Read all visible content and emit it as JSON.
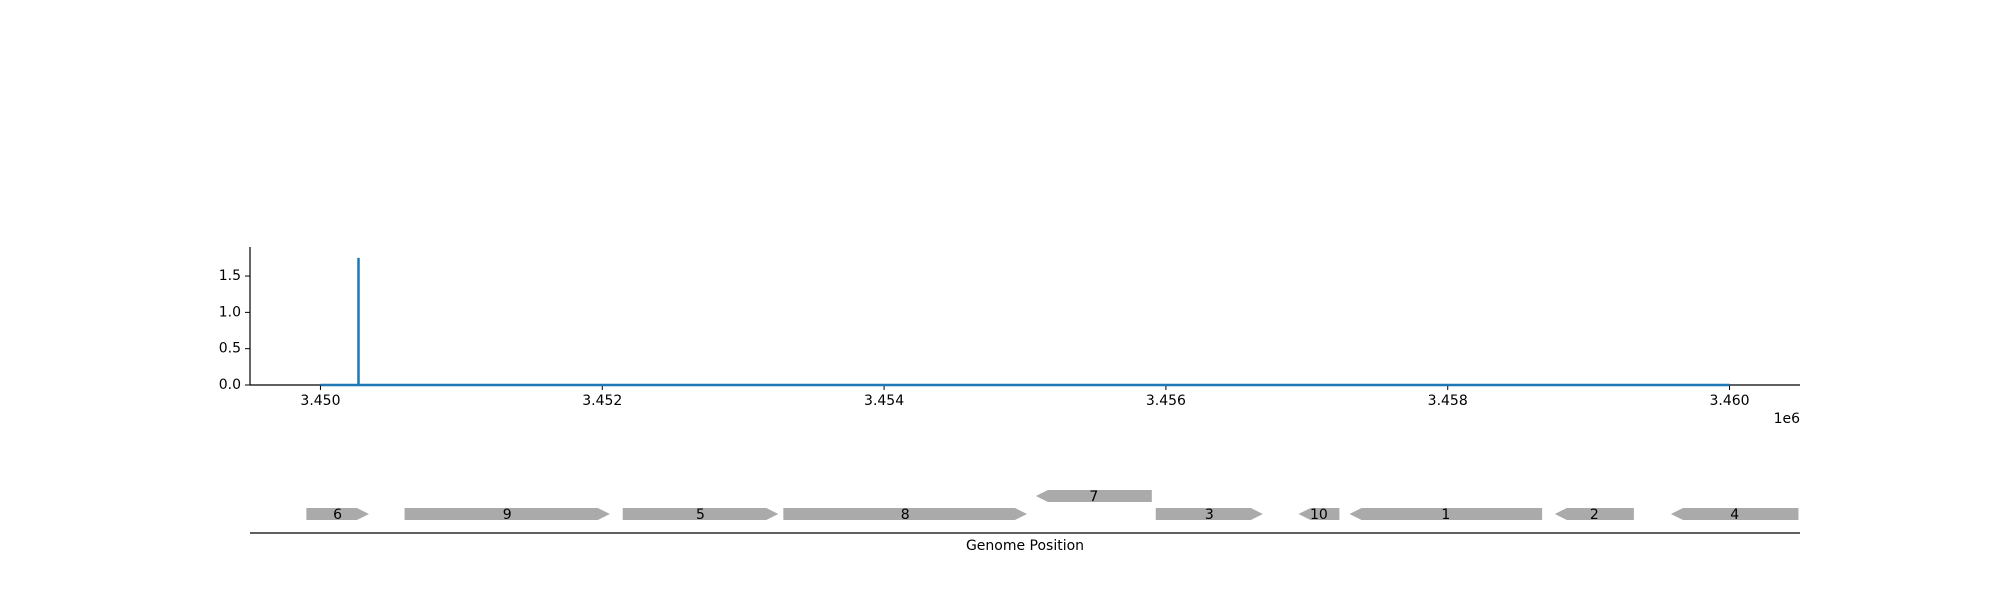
{
  "chart_data": [
    {
      "type": "line",
      "x": [
        3450000,
        3450270,
        3450270,
        3450270,
        3460000
      ],
      "series": [
        {
          "color": "#1f77b4",
          "values": [
            0,
            0,
            1.75,
            0,
            0
          ]
        }
      ],
      "xlim": [
        3449500,
        3460500
      ],
      "xticks": [
        {
          "value": 3450000,
          "label": "3.450"
        },
        {
          "value": 3452000,
          "label": "3.452"
        },
        {
          "value": 3454000,
          "label": "3.454"
        },
        {
          "value": 3456000,
          "label": "3.456"
        },
        {
          "value": 3458000,
          "label": "3.458"
        },
        {
          "value": 3460000,
          "label": "3.460"
        }
      ],
      "x_offset_label": "1e6",
      "ylim": [
        0,
        1.9
      ],
      "yticks": [
        {
          "value": 0,
          "label": "0.0"
        },
        {
          "value": 0.5,
          "label": "0.5"
        },
        {
          "value": 1,
          "label": "1.0"
        },
        {
          "value": 1.5,
          "label": "1.5"
        }
      ]
    },
    {
      "type": "gene-map",
      "xlabel": "Genome Position",
      "xlim": [
        3449500,
        3460500
      ],
      "color": "#aaaaaa",
      "genes": [
        {
          "label": "6",
          "start": 3449900,
          "end": 3450344,
          "strand": 1
        },
        {
          "label": "9",
          "start": 3450597,
          "end": 3452054,
          "strand": 1
        },
        {
          "label": "5",
          "start": 3452145,
          "end": 3453249,
          "strand": 1
        },
        {
          "label": "8",
          "start": 3453285,
          "end": 3455014,
          "strand": 1
        },
        {
          "label": "7",
          "start": 3455077,
          "end": 3455900,
          "strand": -1
        },
        {
          "label": "3",
          "start": 3455928,
          "end": 3456688,
          "strand": 1
        },
        {
          "label": "10",
          "start": 3456941,
          "end": 3457231,
          "strand": -1
        },
        {
          "label": "1",
          "start": 3457303,
          "end": 3458670,
          "strand": -1
        },
        {
          "label": "2",
          "start": 3458760,
          "end": 3459321,
          "strand": -1
        },
        {
          "label": "4",
          "start": 3459584,
          "end": 3460489,
          "strand": -1
        }
      ]
    }
  ]
}
